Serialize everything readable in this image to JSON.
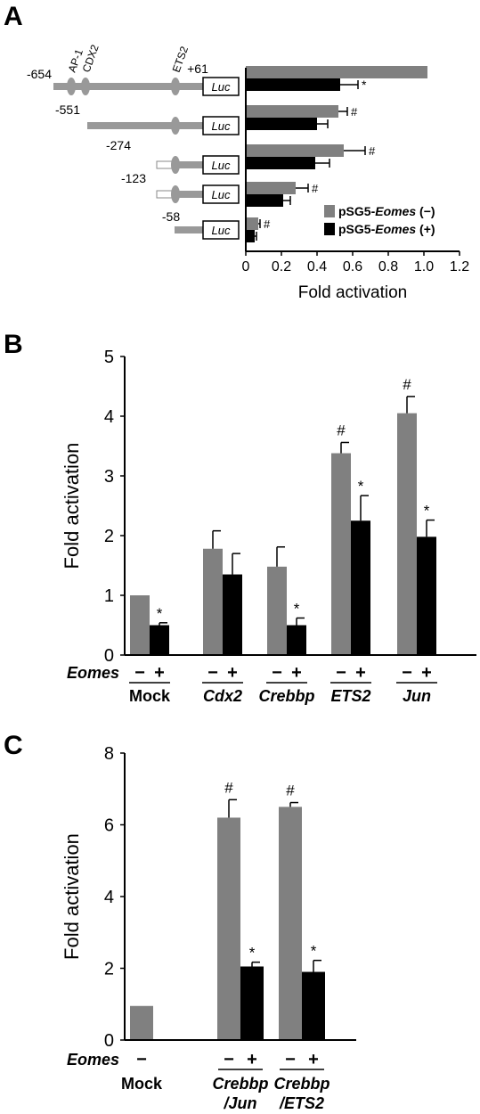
{
  "panels": {
    "A": {
      "letter": "A",
      "chart_data": {
        "type": "bar",
        "orientation": "horizontal",
        "categories": [
          "-654",
          "-551",
          "-274",
          "-123",
          "-58"
        ],
        "series": [
          {
            "name": "pSG5-Eomes (−)",
            "color": "#808080",
            "values": [
              1.02,
              0.52,
              0.55,
              0.28,
              0.07
            ],
            "errors": [
              0,
              0.05,
              0.12,
              0.07,
              0.01
            ]
          },
          {
            "name": "pSG5-Eomes (+)",
            "color": "#000000",
            "values": [
              0.53,
              0.4,
              0.39,
              0.21,
              0.05
            ],
            "errors": [
              0.1,
              0.06,
              0.08,
              0.04,
              0.01
            ]
          }
        ],
        "gray_marks": [
          "",
          "#",
          "#",
          "#",
          "#"
        ],
        "black_marks": [
          "*",
          "",
          "",
          "",
          ""
        ],
        "xlabel": "Fold activation",
        "xticks": [
          "0",
          "0.2",
          "0.4",
          "0.6",
          "0.8",
          "1.0",
          "1.2"
        ],
        "xlim": [
          0,
          1.2
        ],
        "legend": {
          "entries": [
            {
              "prefix": "pSG5-",
              "gene": "Eomes",
              "suffix": " (−)",
              "color": "#808080"
            },
            {
              "prefix": "pSG5-",
              "gene": "Eomes",
              "suffix": " (+)",
              "color": "#000000"
            }
          ],
          "placement": "bottom-right"
        },
        "constructs": {
          "positions": [
            "-654",
            "-551",
            "-274",
            "-123",
            "-58"
          ],
          "end_label": "+61",
          "sites": [
            "AP-1",
            "CDX2",
            "ETS2"
          ],
          "reporter_label": "Luc"
        }
      }
    },
    "B": {
      "letter": "B",
      "chart_data": {
        "type": "bar",
        "groups": [
          "Mock",
          "Cdx2",
          "Crebbp",
          "ETS2",
          "Jun"
        ],
        "group_italic": [
          false,
          true,
          true,
          true,
          true
        ],
        "series": [
          {
            "name": "−",
            "color": "#808080",
            "values": [
              1.0,
              1.78,
              1.48,
              3.38,
              4.05
            ],
            "errors": [
              0,
              0.3,
              0.33,
              0.18,
              0.28
            ]
          },
          {
            "name": "+",
            "color": "#000000",
            "values": [
              0.5,
              1.35,
              0.5,
              2.25,
              1.98
            ],
            "errors": [
              0.04,
              0.35,
              0.12,
              0.42,
              0.28
            ]
          }
        ],
        "gray_marks": [
          "",
          "",
          "",
          "#",
          "#"
        ],
        "black_marks": [
          "*",
          "",
          "*",
          "*",
          "*"
        ],
        "ylabel": "Fold activation",
        "yticks": [
          "0",
          "1",
          "2",
          "3",
          "4",
          "5"
        ],
        "ylim": [
          0,
          5
        ],
        "condition_label": "Eomes",
        "sign_minus": "−",
        "sign_plus": "+"
      }
    },
    "C": {
      "letter": "C",
      "chart_data": {
        "type": "bar",
        "groups": [
          {
            "line1": "Mock",
            "line2": "",
            "italic": false,
            "has_plus": false
          },
          {
            "line1": "Crebbp",
            "line2": "/Jun",
            "italic": true,
            "has_plus": true
          },
          {
            "line1": "Crebbp",
            "line2": "/ETS2",
            "italic": true,
            "has_plus": true
          }
        ],
        "series": [
          {
            "name": "−",
            "color": "#808080",
            "values": [
              0.95,
              6.2,
              6.5
            ],
            "errors": [
              0,
              0.5,
              0.12
            ]
          },
          {
            "name": "+",
            "color": "#000000",
            "values": [
              null,
              2.05,
              1.9
            ],
            "errors": [
              0,
              0.12,
              0.32
            ]
          }
        ],
        "gray_marks": [
          "",
          "#",
          "#"
        ],
        "black_marks": [
          "",
          "*",
          "*"
        ],
        "ylabel": "Fold activation",
        "yticks": [
          "0",
          "2",
          "4",
          "6",
          "8"
        ],
        "ylim": [
          0,
          8
        ],
        "condition_label": "Eomes",
        "sign_minus": "−",
        "sign_plus": "+"
      }
    }
  }
}
